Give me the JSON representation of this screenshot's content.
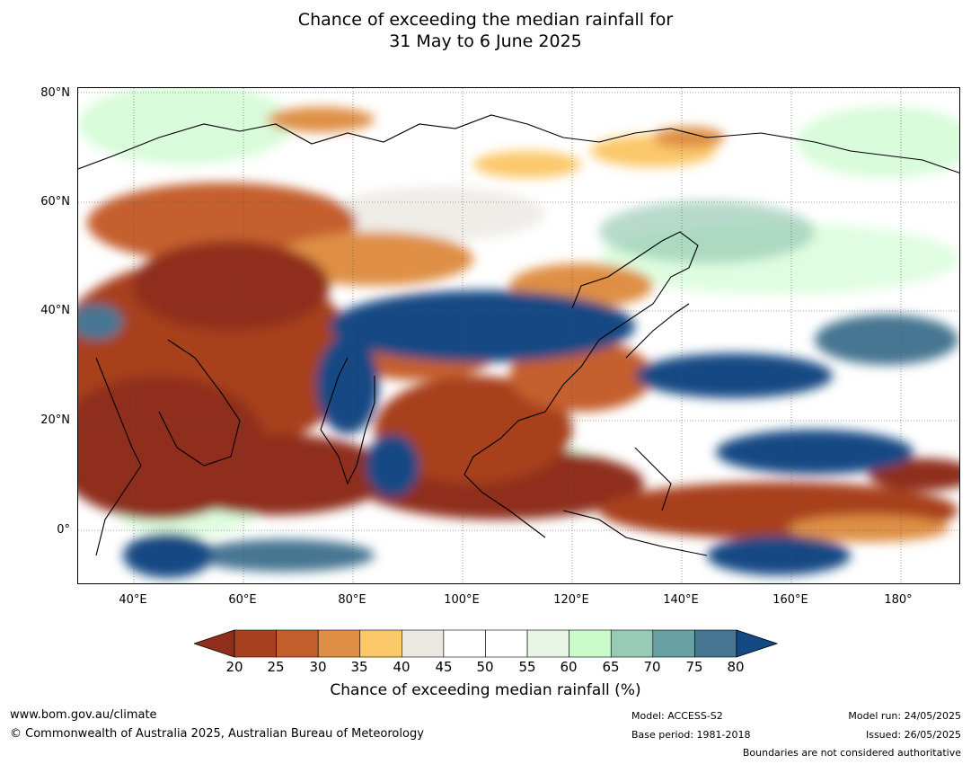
{
  "title_line1": "Chance of exceeding the median rainfall for",
  "title_line2": "31 May to 6 June 2025",
  "lat_labels": [
    "80°N",
    "60°N",
    "40°N",
    "20°N",
    "0°"
  ],
  "lon_labels": [
    "40°E",
    "60°E",
    "80°E",
    "100°E",
    "120°E",
    "140°E",
    "160°E",
    "180°"
  ],
  "map": {
    "lon_range": [
      30,
      191
    ],
    "lat_range": [
      -10,
      80
    ],
    "gridlines": true
  },
  "colorbar": {
    "ticks": [
      "20",
      "25",
      "30",
      "35",
      "40",
      "45",
      "50",
      "55",
      "60",
      "65",
      "70",
      "75",
      "80"
    ],
    "colors": {
      "below_20": "#8f2f1b",
      "20_25": "#a8411f",
      "25_30": "#c55e2d",
      "30_35": "#df8f45",
      "35_40": "#fbc86a",
      "40_45": "#ebe8e2",
      "45_50": "#ffffff",
      "50_55": "#ffffff",
      "55_60": "#e9f6e6",
      "60_65": "#c9fbcb",
      "65_70": "#98cbb5",
      "70_75": "#68a0a4",
      "75_80": "#467692",
      "above_80": "#134a84"
    },
    "label": "Chance of exceeding median rainfall (%)"
  },
  "footer": {
    "website": "www.bom.gov.au/climate",
    "copyright": "© Commonwealth of Australia 2025, Australian Bureau of Meteorology",
    "model": "Model: ACCESS-S2",
    "base_period": "Base period: 1981-2018",
    "model_run": "Model run: 24/05/2025",
    "issued": "Issued: 26/05/2025",
    "disclaimer": "Boundaries are not considered authoritative"
  }
}
